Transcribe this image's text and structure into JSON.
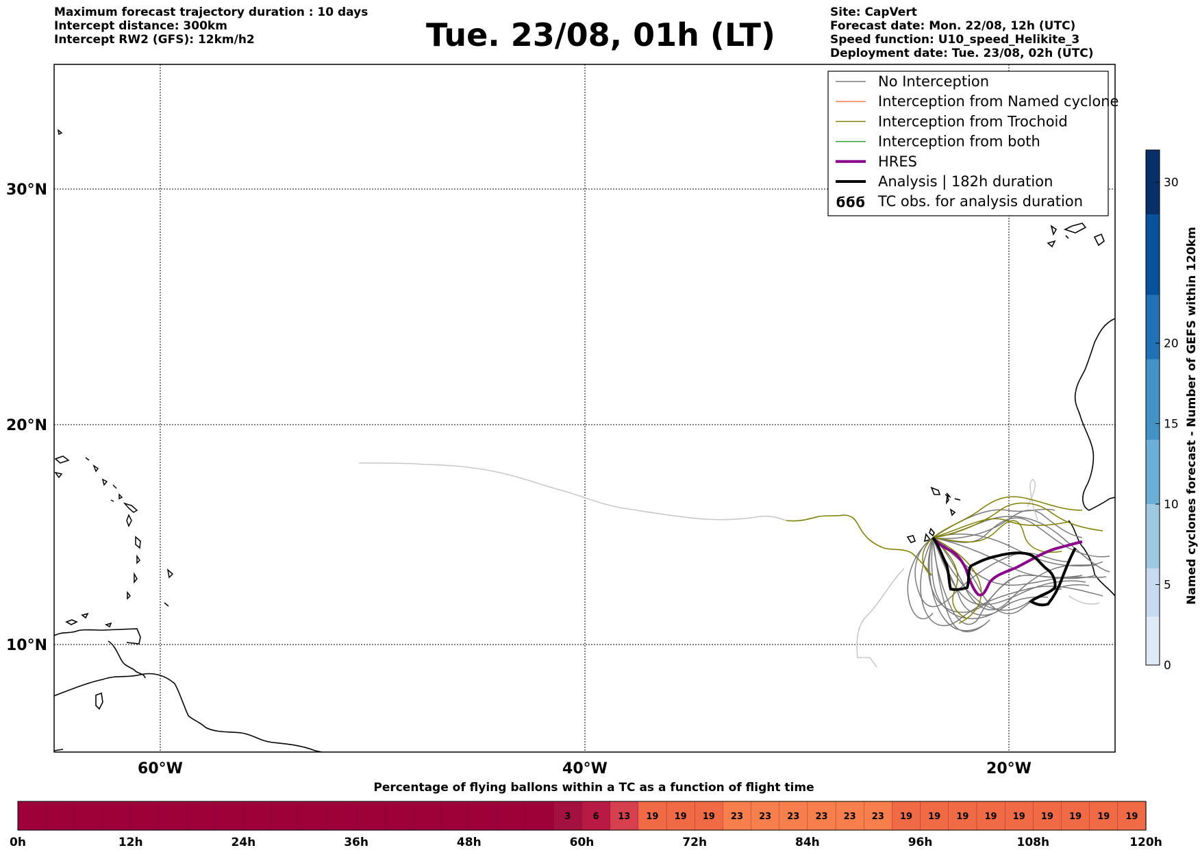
{
  "header": {
    "left_lines": [
      "Maximum forecast trajectory duration : 10 days",
      "Intercept distance: 300km",
      "Intercept RW2 (GFS):  12km/h2"
    ],
    "title": "Tue. 23/08, 01h (LT)",
    "right_lines": [
      "Site: CapVert",
      "Forecast date: Mon. 22/08, 12h (UTC)",
      "Speed function: U10_speed_Helikite_3",
      "Deployment date: Tue. 23/08, 02h (UTC)"
    ]
  },
  "map": {
    "lat_labels": [
      "30°N",
      "20°N",
      "10°N"
    ],
    "lon_labels": [
      "60°W",
      "40°W",
      "20°W"
    ],
    "grid": true,
    "colors": {
      "no_interception": "#7a7a7a",
      "light_track": "#c8c8c8",
      "named_cyclone": "#ff7f50",
      "trochoid": "#808000",
      "both": "#2ca02c",
      "hres": "#8b008b",
      "analysis": "#000000"
    }
  },
  "legend": {
    "items": [
      {
        "label": "No Interception",
        "color": "#7a7a7a",
        "style": "thin"
      },
      {
        "label": "Interception from Named cyclone",
        "color": "#ff7f50",
        "style": "thin"
      },
      {
        "label": "Interception from Trochoid",
        "color": "#808000",
        "style": "thin"
      },
      {
        "label": "Interception from both",
        "color": "#2ca02c",
        "style": "thin"
      },
      {
        "label": "HRES",
        "color": "#8b008b",
        "style": "thick"
      },
      {
        "label": "Analysis | 182h duration",
        "color": "#000000",
        "style": "thick"
      },
      {
        "label": "TC obs. for analysis duration",
        "color": "#000000",
        "style": "symbol",
        "symbol": "ϭϭϭ"
      }
    ]
  },
  "colorbar": {
    "label": "Named cyclones forecast - Number of GEFS within 120km",
    "ticks": [
      "0",
      "5",
      "10",
      "15",
      "20",
      "30"
    ],
    "colors": [
      "#deebf7",
      "#c6dbef",
      "#9ecae1",
      "#6baed6",
      "#4292c6",
      "#2171b5",
      "#08519c",
      "#08306b"
    ]
  },
  "bottom_bar": {
    "title": "Percentage of flying ballons within a TC as a function of flight time",
    "ticks": [
      "0h",
      "12h",
      "24h",
      "36h",
      "48h",
      "60h",
      "72h",
      "84h",
      "96h",
      "108h",
      "120h"
    ],
    "values": [
      "3",
      "6",
      "13",
      "19",
      "19",
      "19",
      "23",
      "23",
      "23",
      "23",
      "23",
      "23",
      "19",
      "19",
      "19",
      "19",
      "19",
      "19",
      "19",
      "19",
      "19"
    ],
    "colors": {
      "zero": "#9e003a",
      "3": "#a3113f",
      "6": "#b71a43",
      "13": "#d6404e",
      "19": "#ef6a45",
      "23": "#f67f4b"
    }
  }
}
